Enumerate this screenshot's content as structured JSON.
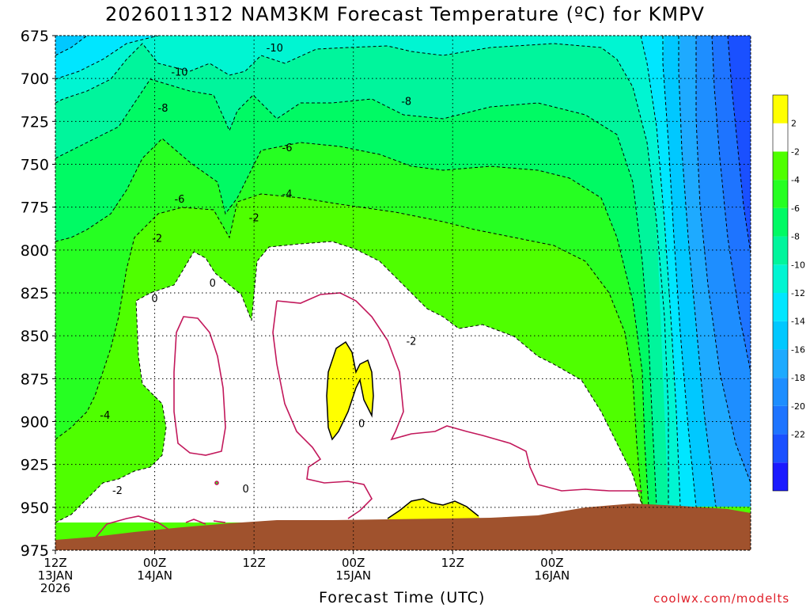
{
  "chart_data": {
    "type": "contour",
    "title": "2026011312 NAM3KM Forecast Temperature (ºC) for KMPV",
    "xlabel": "Forecast Time (UTC)",
    "credit": "coolwx.com/modelts",
    "y_axis": {
      "ticks": [
        675,
        700,
        725,
        750,
        775,
        800,
        825,
        850,
        875,
        900,
        925,
        950,
        975
      ],
      "range": [
        675,
        975
      ],
      "reversed": true
    },
    "x_axis": {
      "range_hours": [
        0,
        84
      ],
      "ticks": [
        {
          "hour": 0,
          "lines": [
            "12Z",
            "13JAN",
            "2026"
          ]
        },
        {
          "hour": 12,
          "lines": [
            "00Z",
            "14JAN"
          ]
        },
        {
          "hour": 24,
          "lines": [
            "12Z"
          ]
        },
        {
          "hour": 36,
          "lines": [
            "00Z",
            "15JAN"
          ]
        },
        {
          "hour": 48,
          "lines": [
            "12Z"
          ]
        },
        {
          "hour": 60,
          "lines": [
            "00Z",
            "16JAN"
          ]
        }
      ]
    },
    "grid": true,
    "colorbar": [
      {
        "label": "",
        "color": "#1a1aff"
      },
      {
        "label": "-22",
        "color": "#1a50ff"
      },
      {
        "label": "-20",
        "color": "#1e74ff"
      },
      {
        "label": "-18",
        "color": "#1e8eff"
      },
      {
        "label": "-16",
        "color": "#1eaaff"
      },
      {
        "label": "-14",
        "color": "#00c8ff"
      },
      {
        "label": "-12",
        "color": "#00e6ff"
      },
      {
        "label": "-10",
        "color": "#00f5d2"
      },
      {
        "label": "-8",
        "color": "#00f59c"
      },
      {
        "label": "-6",
        "color": "#00fa64"
      },
      {
        "label": "-4",
        "color": "#26ff22"
      },
      {
        "label": "-2",
        "color": "#4fff00"
      },
      {
        "label": "2",
        "color": "#ffffff"
      },
      {
        "label": "",
        "color": "#ffff00"
      }
    ],
    "contour_labels": [
      {
        "text": "-10",
        "hour": 26.5,
        "p": 682
      },
      {
        "text": "-10",
        "hour": 15.0,
        "p": 696
      },
      {
        "text": "-8",
        "hour": 42.4,
        "p": 713
      },
      {
        "text": "-8",
        "hour": 13.0,
        "p": 717
      },
      {
        "text": "-6",
        "hour": 28.0,
        "p": 740
      },
      {
        "text": "-6",
        "hour": 15.0,
        "p": 770
      },
      {
        "text": "-4",
        "hour": 28.0,
        "p": 767
      },
      {
        "text": "-2",
        "hour": 24.0,
        "p": 781
      },
      {
        "text": "-2",
        "hour": 12.3,
        "p": 793
      },
      {
        "text": "0",
        "hour": 19.0,
        "p": 819
      },
      {
        "text": "0",
        "hour": 12.0,
        "p": 828
      },
      {
        "text": "-2",
        "hour": 43.0,
        "p": 853
      },
      {
        "text": "-4",
        "hour": 6.0,
        "p": 896
      },
      {
        "text": "0",
        "hour": 37.0,
        "p": 901
      },
      {
        "text": "0",
        "hour": 23.0,
        "p": 939
      },
      {
        "text": "-2",
        "hour": 7.5,
        "p": 940
      }
    ],
    "colors": {
      "terrain": "#a0522d",
      "zero_line": "#c2185b",
      "contour_line": "#000000"
    }
  }
}
